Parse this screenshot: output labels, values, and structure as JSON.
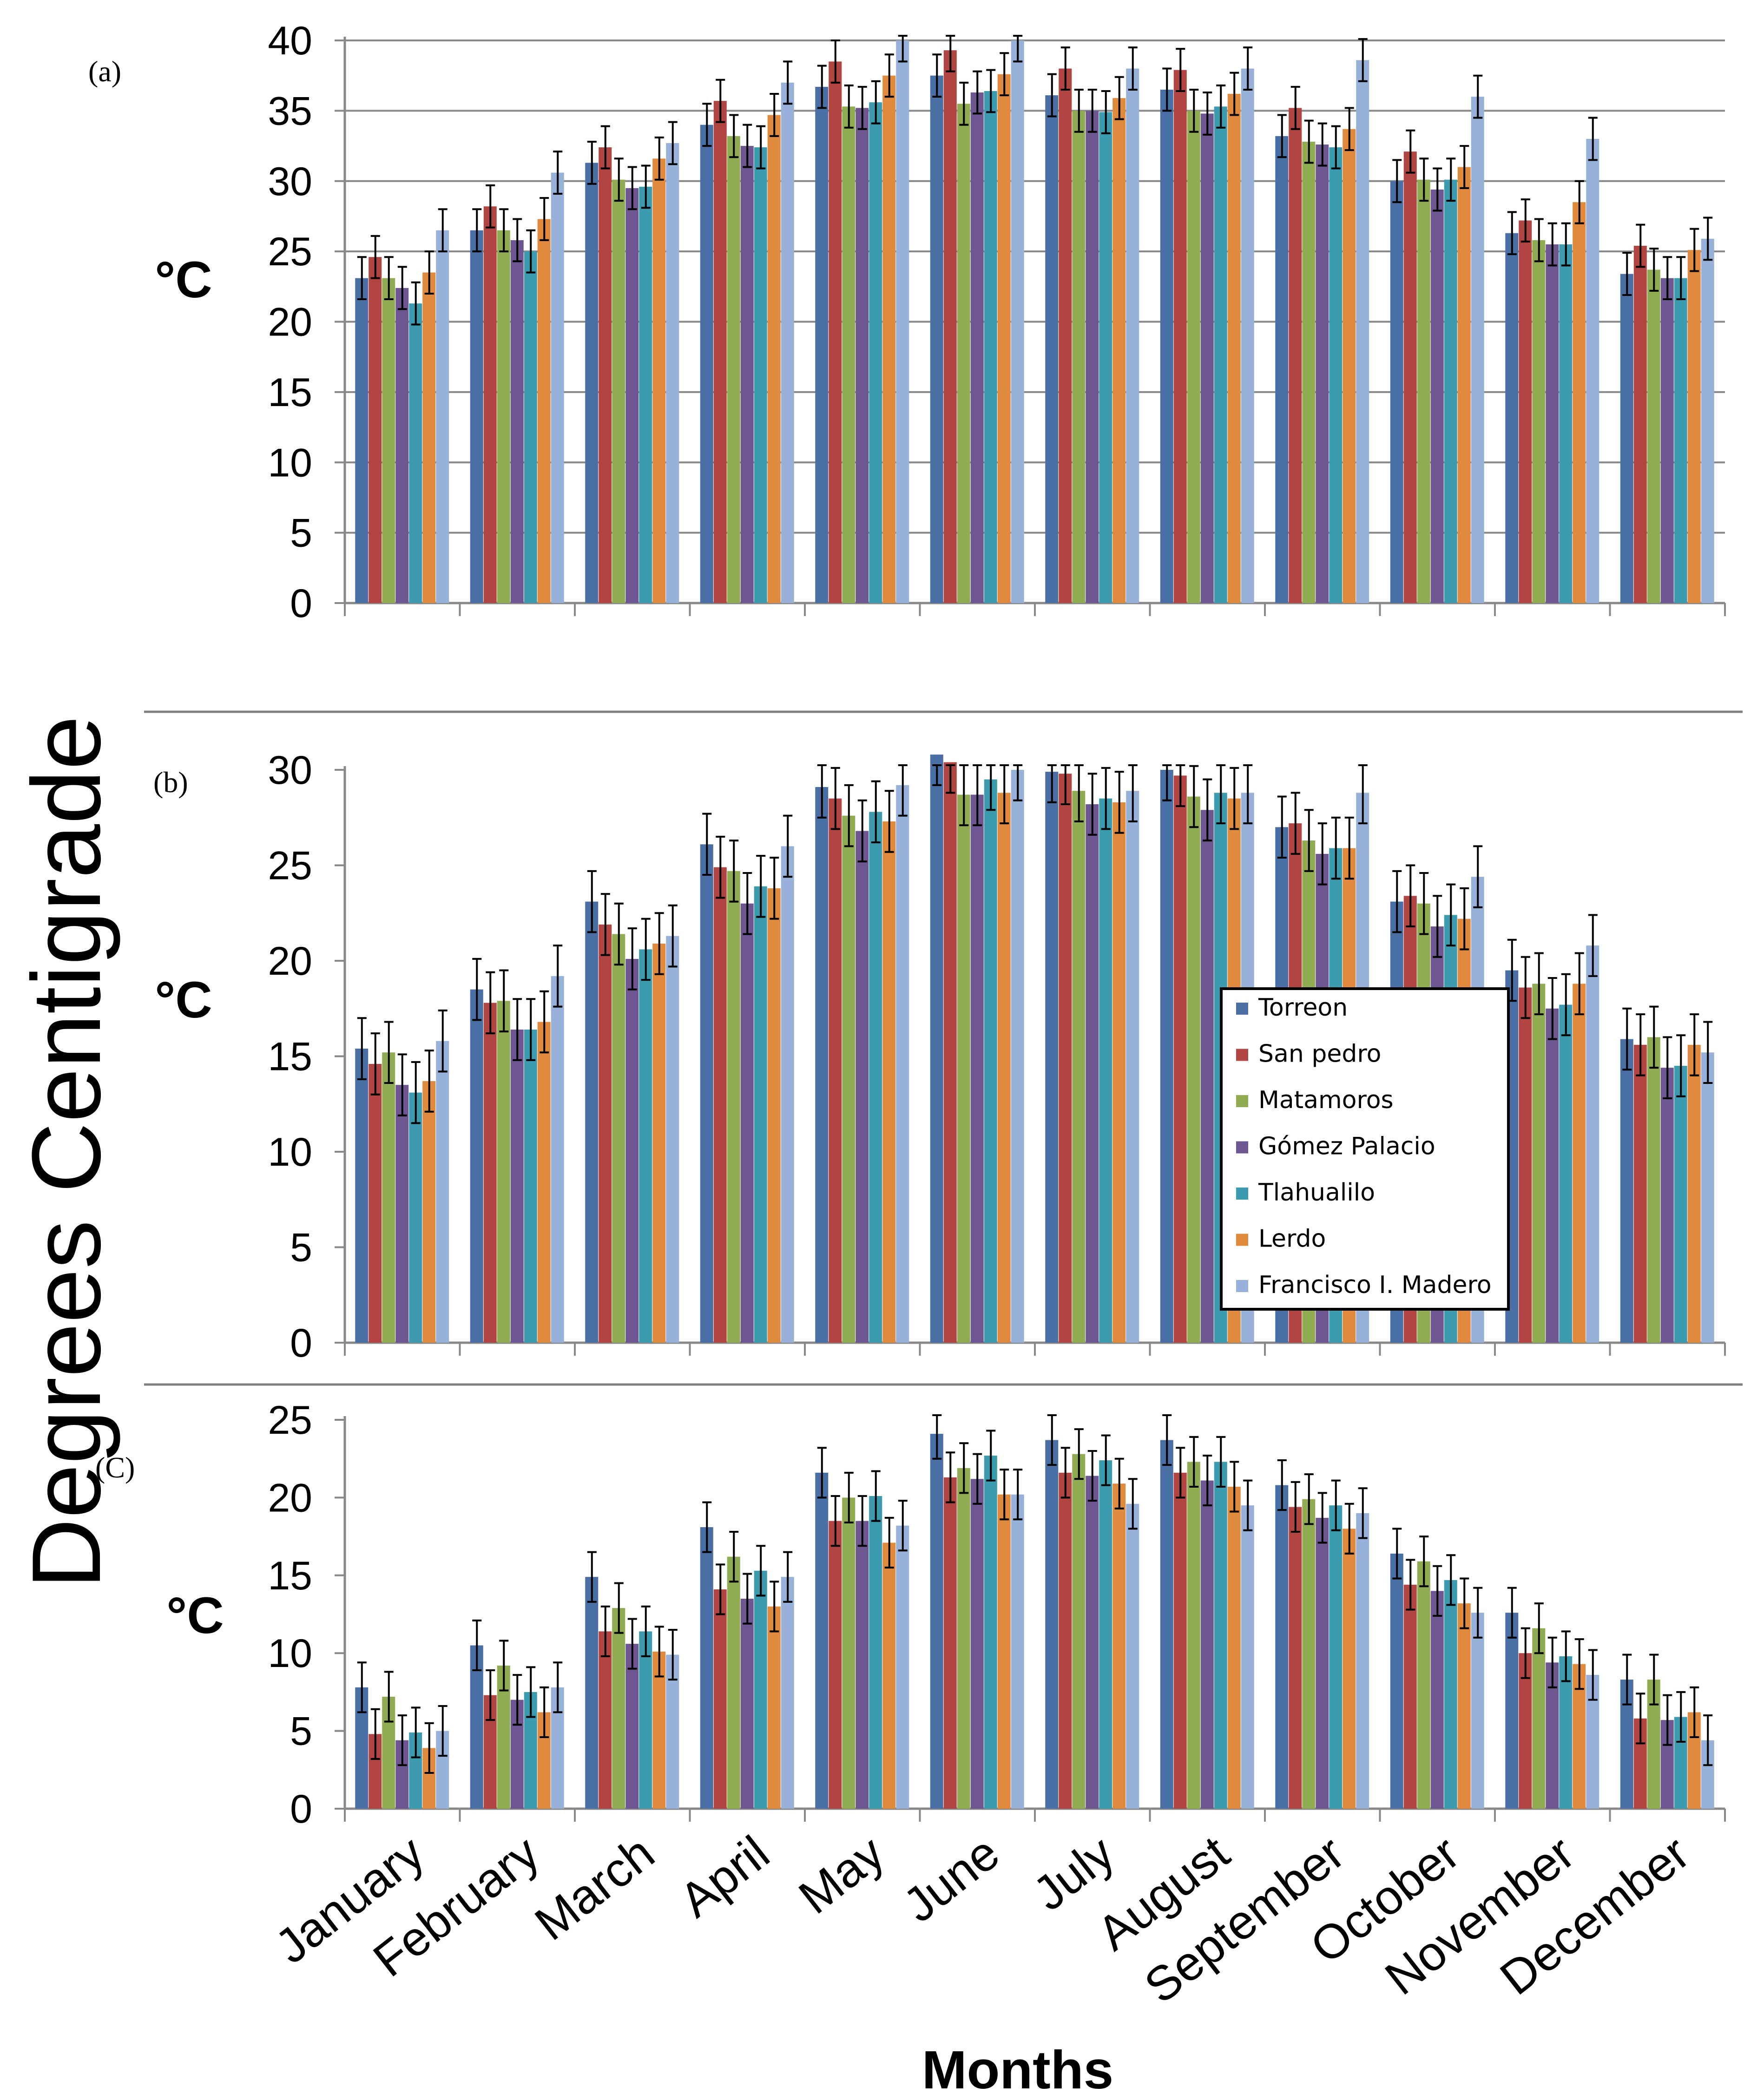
{
  "figure": {
    "ylabel": "Degrees Centigrade",
    "xlabel": "Months",
    "colors": [
      "#4a6fa5",
      "#b04542",
      "#8fac52",
      "#6e5791",
      "#3d9bb0",
      "#e08a3e",
      "#98b1d9"
    ]
  },
  "chart_data": [
    {
      "type": "bar",
      "panel_label": "(a)",
      "ylabel": "°C",
      "ylim": [
        0,
        40
      ],
      "yticks": [
        0,
        5,
        10,
        15,
        20,
        25,
        30,
        35,
        40
      ],
      "grid": true,
      "categories": [
        "January",
        "February",
        "March",
        "April",
        "May",
        "June",
        "July",
        "August",
        "September",
        "October",
        "November",
        "December"
      ],
      "series": [
        {
          "name": "Torreon",
          "values": [
            23.1,
            26.5,
            31.3,
            34.0,
            36.7,
            37.5,
            36.1,
            36.5,
            33.2,
            30.0,
            26.3,
            23.4
          ]
        },
        {
          "name": "San pedro",
          "values": [
            24.6,
            28.2,
            32.4,
            35.7,
            38.5,
            39.3,
            38.0,
            37.9,
            35.2,
            32.1,
            27.2,
            25.4
          ]
        },
        {
          "name": "Matamoros",
          "values": [
            23.1,
            26.5,
            30.1,
            33.2,
            35.3,
            35.5,
            35.0,
            35.0,
            32.8,
            30.1,
            25.8,
            23.7
          ]
        },
        {
          "name": "Gómez Palacio",
          "values": [
            22.4,
            25.8,
            29.5,
            32.5,
            35.2,
            36.3,
            35.0,
            34.8,
            32.6,
            29.4,
            25.5,
            23.1
          ]
        },
        {
          "name": "Tlahualilo",
          "values": [
            21.3,
            25.0,
            29.6,
            32.4,
            35.6,
            36.4,
            34.9,
            35.3,
            32.4,
            30.1,
            25.5,
            23.1
          ]
        },
        {
          "name": "Lerdo",
          "values": [
            23.5,
            27.3,
            31.6,
            34.7,
            37.5,
            37.6,
            35.9,
            36.2,
            33.7,
            31.0,
            28.5,
            25.1
          ]
        },
        {
          "name": "Francisco I. Madero",
          "values": [
            26.5,
            30.6,
            32.7,
            37.0,
            40.0,
            40.0,
            38.0,
            38.0,
            38.6,
            36.0,
            33.0,
            25.9
          ]
        }
      ],
      "error": 1.5
    },
    {
      "type": "bar",
      "panel_label": "(b)",
      "ylabel": "°C",
      "ylim": [
        0,
        30
      ],
      "yticks": [
        0,
        5,
        10,
        15,
        20,
        25,
        30
      ],
      "grid": false,
      "categories": [
        "January",
        "February",
        "March",
        "April",
        "May",
        "June",
        "July",
        "August",
        "September",
        "October",
        "November",
        "December"
      ],
      "series": [
        {
          "name": "Torreon",
          "values": [
            15.4,
            18.5,
            23.1,
            26.1,
            29.1,
            30.8,
            29.9,
            30.0,
            27.0,
            23.1,
            19.5,
            15.9
          ]
        },
        {
          "name": "San pedro",
          "values": [
            14.6,
            17.8,
            21.9,
            24.9,
            28.5,
            30.4,
            29.8,
            29.7,
            27.2,
            23.4,
            18.6,
            15.6
          ]
        },
        {
          "name": "Matamoros",
          "values": [
            15.2,
            17.9,
            21.4,
            24.7,
            27.6,
            28.7,
            28.9,
            28.6,
            26.3,
            23.0,
            18.8,
            16.0
          ]
        },
        {
          "name": "Gómez Palacio",
          "values": [
            13.5,
            16.4,
            20.1,
            23.0,
            26.8,
            28.7,
            28.2,
            27.9,
            25.6,
            21.8,
            17.5,
            14.4
          ]
        },
        {
          "name": "Tlahualilo",
          "values": [
            13.1,
            16.4,
            20.6,
            23.9,
            27.8,
            29.5,
            28.5,
            28.8,
            25.9,
            22.4,
            17.7,
            14.5
          ]
        },
        {
          "name": "Lerdo",
          "values": [
            13.7,
            16.8,
            20.9,
            23.8,
            27.3,
            28.8,
            28.3,
            28.5,
            25.9,
            22.2,
            18.8,
            15.6
          ]
        },
        {
          "name": "Francisco I. Madero",
          "values": [
            15.8,
            19.2,
            21.3,
            26.0,
            29.2,
            30.0,
            28.9,
            28.8,
            28.8,
            24.4,
            20.8,
            15.2
          ]
        }
      ],
      "error": 1.6
    },
    {
      "type": "bar",
      "panel_label": "(C)",
      "ylabel": "°C",
      "ylim": [
        0,
        25
      ],
      "yticks": [
        0,
        5,
        10,
        15,
        20,
        25
      ],
      "grid": false,
      "categories": [
        "January",
        "February",
        "March",
        "April",
        "May",
        "June",
        "July",
        "August",
        "September",
        "October",
        "November",
        "December"
      ],
      "series": [
        {
          "name": "Torreon",
          "values": [
            7.8,
            10.5,
            14.9,
            18.1,
            21.6,
            24.1,
            23.7,
            23.7,
            20.8,
            16.4,
            12.6,
            8.3
          ]
        },
        {
          "name": "San pedro",
          "values": [
            4.8,
            7.3,
            11.4,
            14.1,
            18.5,
            21.3,
            21.6,
            21.6,
            19.4,
            14.4,
            10.0,
            5.8
          ]
        },
        {
          "name": "Matamoros",
          "values": [
            7.2,
            9.2,
            12.9,
            16.2,
            20.0,
            21.9,
            22.8,
            22.3,
            19.9,
            15.9,
            11.6,
            8.3
          ]
        },
        {
          "name": "Gómez Palacio",
          "values": [
            4.4,
            7.0,
            10.6,
            13.5,
            18.5,
            21.2,
            21.4,
            21.1,
            18.7,
            14.0,
            9.4,
            5.7
          ]
        },
        {
          "name": "Tlahualilo",
          "values": [
            4.9,
            7.5,
            11.4,
            15.3,
            20.1,
            22.7,
            22.4,
            22.3,
            19.5,
            14.7,
            9.8,
            5.9
          ]
        },
        {
          "name": "Lerdo",
          "values": [
            3.9,
            6.2,
            10.1,
            13.0,
            17.1,
            20.2,
            20.9,
            20.7,
            18.0,
            13.2,
            9.3,
            6.2
          ]
        },
        {
          "name": "Francisco I. Madero",
          "values": [
            5.0,
            7.8,
            9.9,
            14.9,
            18.2,
            20.2,
            19.6,
            19.5,
            19.0,
            12.6,
            8.6,
            4.4
          ]
        }
      ],
      "error": 1.6
    }
  ]
}
